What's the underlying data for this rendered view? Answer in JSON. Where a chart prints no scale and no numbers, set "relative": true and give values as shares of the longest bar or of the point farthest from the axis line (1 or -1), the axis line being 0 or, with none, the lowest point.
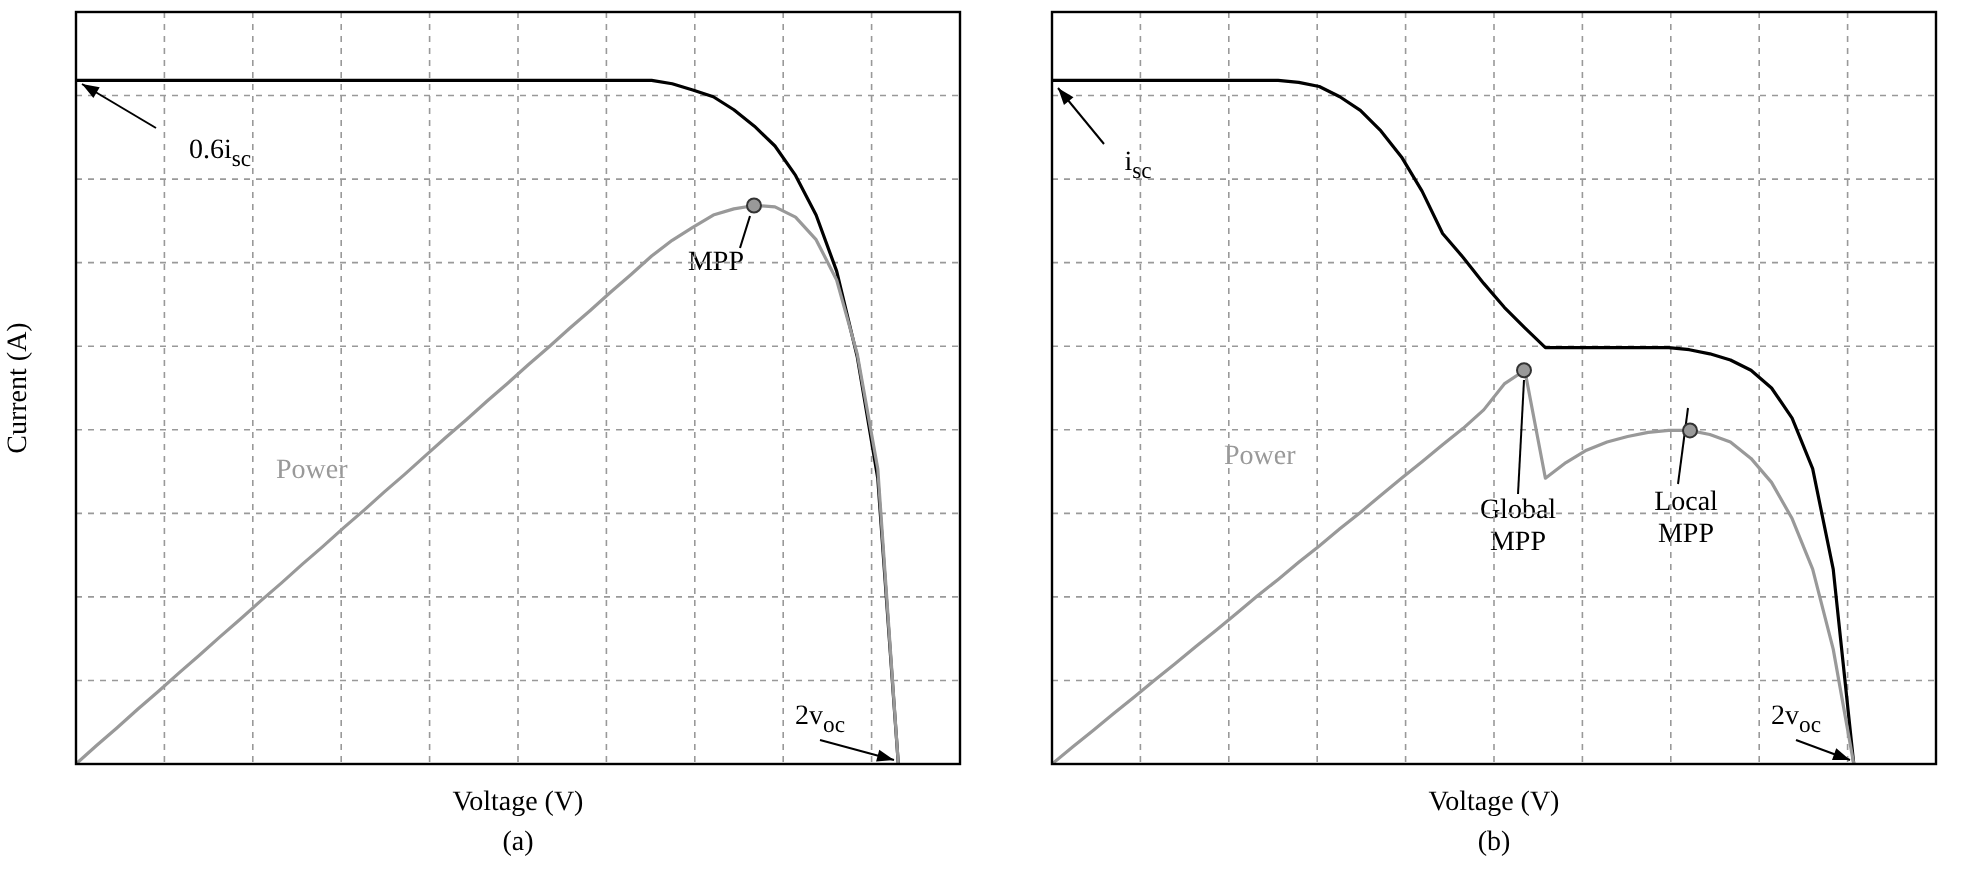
{
  "chart_data": [
    {
      "type": "line",
      "title": "(a)",
      "xlabel": "Voltage (V)",
      "ylabel": "Current (A)",
      "relative": true,
      "grid": true,
      "legend": false,
      "categories": [
        null,
        null,
        null,
        null,
        null,
        null,
        null,
        null,
        null,
        null,
        null,
        null,
        null,
        null,
        null,
        null,
        null,
        null,
        null,
        null,
        null,
        null,
        null,
        null,
        null,
        null,
        null,
        null,
        null,
        null,
        null,
        null,
        null,
        null,
        null,
        null,
        null,
        null,
        null,
        null,
        null,
        null,
        null,
        null
      ],
      "series": [
        {
          "color": "#000000",
          "values": [
            1,
            1,
            1,
            1,
            1,
            1,
            1,
            1,
            1,
            1,
            1,
            1,
            1,
            1,
            1,
            1,
            1,
            1,
            1,
            1,
            1,
            1,
            1,
            1,
            1,
            1,
            1,
            1,
            1,
            0.995,
            0.986,
            0.976,
            0.957,
            0.933,
            0.904,
            0.861,
            0.803,
            0.721,
            0.596,
            0.418,
            0,
            null,
            null,
            null
          ]
        },
        {
          "name": "Power",
          "color": "#999999",
          "values": [
            0,
            0.027,
            0.053,
            0.08,
            0.106,
            0.133,
            0.159,
            0.186,
            0.212,
            0.239,
            0.265,
            0.292,
            0.318,
            0.345,
            0.371,
            0.398,
            0.424,
            0.451,
            0.478,
            0.504,
            0.531,
            0.557,
            0.584,
            0.61,
            0.637,
            0.663,
            0.69,
            0.716,
            0.743,
            0.766,
            0.785,
            0.803,
            0.812,
            0.817,
            0.815,
            0.8,
            0.767,
            0.708,
            0.6,
            0.432,
            0,
            null,
            null,
            null
          ]
        }
      ],
      "annotations": [
        "0.6i$_{sc}$",
        {
          "text": "MPP",
          "y": 0.817
        },
        "2v$_{oc}$"
      ]
    },
    {
      "type": "line",
      "title": "(b)",
      "xlabel": "Voltage (V)",
      "relative": true,
      "grid": true,
      "legend": false,
      "categories": [
        null,
        null,
        null,
        null,
        null,
        null,
        null,
        null,
        null,
        null,
        null,
        null,
        null,
        null,
        null,
        null,
        null,
        null,
        null,
        null,
        null,
        null,
        null,
        null,
        null,
        null,
        null,
        null,
        null,
        null,
        null,
        null,
        null,
        null,
        null,
        null,
        null,
        null,
        null,
        null,
        null,
        null,
        null,
        null
      ],
      "series": [
        {
          "color": "#000000",
          "values": [
            1,
            1,
            1,
            1,
            1,
            1,
            1,
            1,
            1,
            1,
            1,
            1,
            0.997,
            0.991,
            0.976,
            0.956,
            0.926,
            0.888,
            0.838,
            0.776,
            0.741,
            0.703,
            0.668,
            0.638,
            0.609,
            0.609,
            0.609,
            0.609,
            0.609,
            0.609,
            0.609,
            0.606,
            0.6,
            0.591,
            0.576,
            0.55,
            0.506,
            0.432,
            0.285,
            0,
            null,
            null,
            null,
            null
          ]
        },
        {
          "name": "Power",
          "color": "#999999",
          "values": [
            0,
            0.025,
            0.049,
            0.074,
            0.098,
            0.123,
            0.147,
            0.172,
            0.196,
            0.221,
            0.246,
            0.27,
            0.295,
            0.319,
            0.344,
            0.368,
            0.393,
            0.418,
            0.442,
            0.467,
            0.491,
            0.518,
            0.556,
            0.576,
            0.418,
            0.441,
            0.459,
            0.471,
            0.479,
            0.485,
            0.488,
            0.488,
            0.482,
            0.471,
            0.447,
            0.412,
            0.359,
            0.285,
            0.168,
            0,
            null,
            null,
            null,
            null
          ]
        }
      ],
      "annotations": [
        "i$_{sc}$",
        {
          "text": "Global MPP",
          "y": 0.576
        },
        {
          "text": "Local MPP",
          "y": 0.488
        },
        "2v$_{oc}$"
      ]
    }
  ]
}
